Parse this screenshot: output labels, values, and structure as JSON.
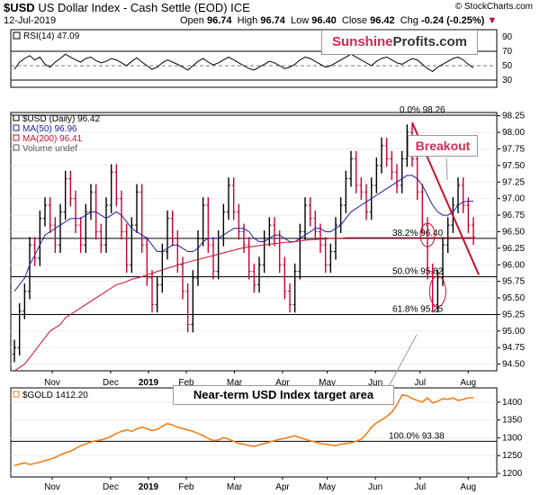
{
  "header": {
    "symbol": "$USD",
    "description": "US Dollar Index - Cash Settle (EOD) ICE",
    "date": "12-Jul-2019",
    "open_label": "Open",
    "open": "96.74",
    "high_label": "High",
    "high": "96.74",
    "low_label": "Low",
    "low": "96.40",
    "close_label": "Close",
    "close": "96.42",
    "chg_label": "Chg",
    "chg": "-0.24 (-0.25%)",
    "chg_arrow": "▼",
    "copyright": "© StockCharts.com"
  },
  "brand": {
    "part1": "Sunshine",
    "part2": "Profits.com"
  },
  "callouts": {
    "breakout": "Breakout",
    "target": "Near-term USD Index target area"
  },
  "colors": {
    "price_up": "#000000",
    "price_down": "#cc0033",
    "ma50": "#1f1f9e",
    "ma200": "#c8102e",
    "gold": "#f07f1e",
    "trend": "#c8102e"
  },
  "chart_data": [
    {
      "type": "line",
      "name": "rsi_panel",
      "legend": "RSI(14) 47.09",
      "ylim": [
        20,
        100
      ],
      "yticks": [
        30,
        50,
        70,
        90
      ],
      "reference_lines": [
        30,
        50,
        70
      ],
      "series": [
        {
          "name": "RSI(14)",
          "values": [
            45,
            55,
            60,
            64,
            58,
            62,
            52,
            48,
            55,
            60,
            66,
            62,
            58,
            55,
            60,
            62,
            57,
            54,
            56,
            60,
            58,
            54,
            50,
            56,
            61,
            55,
            50,
            45,
            48,
            54,
            58,
            55,
            52,
            48,
            44,
            50,
            56,
            60,
            55,
            51,
            54,
            58,
            62,
            58,
            54,
            50,
            46,
            44,
            48,
            52,
            56,
            54,
            50,
            46,
            48,
            52,
            58,
            62,
            60,
            56,
            52,
            48,
            50,
            54,
            58,
            62,
            66,
            62,
            58,
            54,
            50,
            56,
            60,
            62,
            58,
            54,
            52,
            56,
            60,
            58,
            52,
            46,
            42,
            48,
            52,
            56,
            60,
            62,
            58,
            52,
            47
          ]
        }
      ]
    },
    {
      "type": "ohlc",
      "name": "usd_index_panel",
      "legend": [
        "$USD (Daily) 96.42",
        "MA(50) 96.96",
        "MA(200) 96.41",
        "Volume undef"
      ],
      "ylim": [
        94.4,
        98.3
      ],
      "yticks": [
        94.5,
        94.75,
        95.0,
        95.25,
        95.5,
        95.75,
        96.0,
        96.25,
        96.5,
        96.75,
        97.0,
        97.25,
        97.5,
        97.75,
        98.0,
        98.25
      ],
      "ytick_labels": [
        "94.50",
        "94.75",
        "95.00",
        "95.25",
        "95.50",
        "95.75",
        "96.00",
        "96.25",
        "96.50",
        "96.75",
        "97.00",
        "97.25",
        "97.50",
        "97.75",
        "98.00",
        "98.25"
      ],
      "xticks": [
        {
          "label": "Nov",
          "at": 0.11
        },
        {
          "label": "Dec",
          "at": 0.28
        },
        {
          "label": "2019",
          "at": 0.39,
          "bold": true
        },
        {
          "label": "Feb",
          "at": 0.5
        },
        {
          "label": "Mar",
          "at": 0.64
        },
        {
          "label": "Apr",
          "at": 0.78
        },
        {
          "label": "May",
          "at": 0.91
        },
        {
          "label": "Jun",
          "at": 1.05
        },
        {
          "label": "Jul",
          "at": 1.18
        },
        {
          "label": "Aug",
          "at": 1.32
        }
      ],
      "close": [
        94.75,
        95.3,
        95.6,
        96.3,
        96.1,
        96.7,
        96.9,
        96.6,
        96.3,
        96.8,
        97.3,
        97.0,
        96.6,
        96.3,
        96.8,
        97.1,
        96.5,
        96.3,
        96.9,
        97.4,
        97.0,
        96.5,
        96.0,
        96.6,
        97.1,
        96.3,
        95.8,
        95.4,
        95.7,
        96.2,
        96.7,
        96.4,
        96.0,
        95.6,
        95.1,
        95.8,
        96.4,
        96.9,
        96.3,
        95.9,
        96.4,
        96.8,
        97.2,
        96.8,
        96.5,
        96.3,
        95.9,
        95.7,
        96.0,
        96.4,
        96.6,
        96.4,
        96.0,
        95.6,
        95.4,
        95.9,
        96.5,
        96.9,
        96.7,
        96.5,
        96.3,
        96.0,
        96.2,
        96.6,
        96.9,
        97.3,
        97.6,
        97.2,
        97.1,
        96.8,
        97.2,
        97.5,
        97.8,
        97.6,
        97.4,
        97.2,
        97.6,
        98.0,
        97.6,
        97.1,
        96.6,
        95.9,
        95.4,
        95.8,
        96.3,
        96.6,
        96.9,
        97.2,
        96.9,
        96.6,
        96.42
      ],
      "ma50": [
        95.6,
        95.7,
        95.8,
        96.0,
        96.15,
        96.3,
        96.45,
        96.5,
        96.55,
        96.6,
        96.65,
        96.7,
        96.7,
        96.7,
        96.75,
        96.8,
        96.8,
        96.75,
        96.7,
        96.75,
        96.8,
        96.75,
        96.65,
        96.55,
        96.5,
        96.45,
        96.4,
        96.3,
        96.2,
        96.2,
        96.25,
        96.3,
        96.3,
        96.25,
        96.2,
        96.2,
        96.25,
        96.35,
        96.4,
        96.4,
        96.4,
        96.45,
        96.5,
        96.55,
        96.55,
        96.55,
        96.5,
        96.4,
        96.35,
        96.35,
        96.4,
        96.45,
        96.45,
        96.4,
        96.35,
        96.35,
        96.4,
        96.45,
        96.5,
        96.55,
        96.55,
        96.5,
        96.5,
        96.55,
        96.6,
        96.7,
        96.8,
        96.85,
        96.9,
        96.95,
        97.0,
        97.05,
        97.1,
        97.15,
        97.2,
        97.25,
        97.3,
        97.35,
        97.35,
        97.3,
        97.2,
        97.05,
        96.9,
        96.8,
        96.75,
        96.75,
        96.8,
        96.9,
        96.95,
        96.96,
        96.96
      ],
      "ma200": [
        94.4,
        94.45,
        94.5,
        94.6,
        94.7,
        94.8,
        94.9,
        95.0,
        95.05,
        95.1,
        95.2,
        95.25,
        95.3,
        95.35,
        95.4,
        95.45,
        95.5,
        95.55,
        95.6,
        95.65,
        95.7,
        95.72,
        95.75,
        95.78,
        95.8,
        95.82,
        95.85,
        95.87,
        95.9,
        95.92,
        95.95,
        95.97,
        96.0,
        96.02,
        96.04,
        96.06,
        96.08,
        96.1,
        96.12,
        96.14,
        96.16,
        96.18,
        96.2,
        96.22,
        96.24,
        96.26,
        96.27,
        96.28,
        96.29,
        96.3,
        96.31,
        96.32,
        96.33,
        96.34,
        96.34,
        96.35,
        96.36,
        96.37,
        96.38,
        96.38,
        96.39,
        96.39,
        96.4,
        96.4,
        96.4,
        96.41,
        96.41,
        96.41,
        96.41,
        96.41,
        96.41,
        96.41,
        96.41,
        96.41,
        96.41,
        96.41,
        96.41,
        96.41,
        96.41,
        96.41,
        96.41,
        96.41,
        96.41,
        96.41,
        96.41,
        96.41,
        96.41,
        96.41,
        96.41,
        96.41,
        96.41
      ],
      "fib_levels": [
        {
          "label": "0.0% 98.26",
          "value": 98.26
        },
        {
          "label": "38.2% 96.40",
          "value": 96.4
        },
        {
          "label": "50.0% 95.82",
          "value": 95.82
        },
        {
          "label": "61.8% 95.25",
          "value": 95.25
        }
      ]
    },
    {
      "type": "line",
      "name": "gold_panel",
      "legend": "$GOLD 1412.20",
      "ylim": [
        1190,
        1440
      ],
      "yticks": [
        1200,
        1250,
        1300,
        1350,
        1400
      ],
      "reference_levels": [
        {
          "label": "100.0% 93.38",
          "value": 1290
        }
      ],
      "xticks": [
        {
          "label": "Nov"
        },
        {
          "label": "Dec"
        },
        {
          "label": "2019",
          "bold": true
        },
        {
          "label": "Feb"
        },
        {
          "label": "Mar"
        },
        {
          "label": "Apr"
        },
        {
          "label": "May"
        },
        {
          "label": "Jun"
        },
        {
          "label": "Jul"
        },
        {
          "label": "Aug"
        }
      ],
      "series": [
        {
          "name": "$GOLD",
          "values": [
            1222,
            1226,
            1230,
            1225,
            1228,
            1232,
            1236,
            1240,
            1245,
            1252,
            1258,
            1262,
            1270,
            1278,
            1283,
            1288,
            1292,
            1294,
            1298,
            1305,
            1312,
            1318,
            1322,
            1318,
            1325,
            1330,
            1326,
            1320,
            1324,
            1332,
            1340,
            1336,
            1330,
            1326,
            1322,
            1318,
            1312,
            1306,
            1298,
            1292,
            1294,
            1300,
            1296,
            1290,
            1284,
            1282,
            1278,
            1276,
            1280,
            1284,
            1288,
            1292,
            1296,
            1298,
            1302,
            1306,
            1300,
            1296,
            1292,
            1288,
            1284,
            1282,
            1280,
            1278,
            1282,
            1284,
            1286,
            1290,
            1296,
            1310,
            1330,
            1342,
            1350,
            1360,
            1372,
            1392,
            1420,
            1418,
            1410,
            1405,
            1400,
            1412,
            1398,
            1402,
            1410,
            1408,
            1412,
            1405,
            1408,
            1412,
            1412.2
          ]
        }
      ]
    }
  ]
}
